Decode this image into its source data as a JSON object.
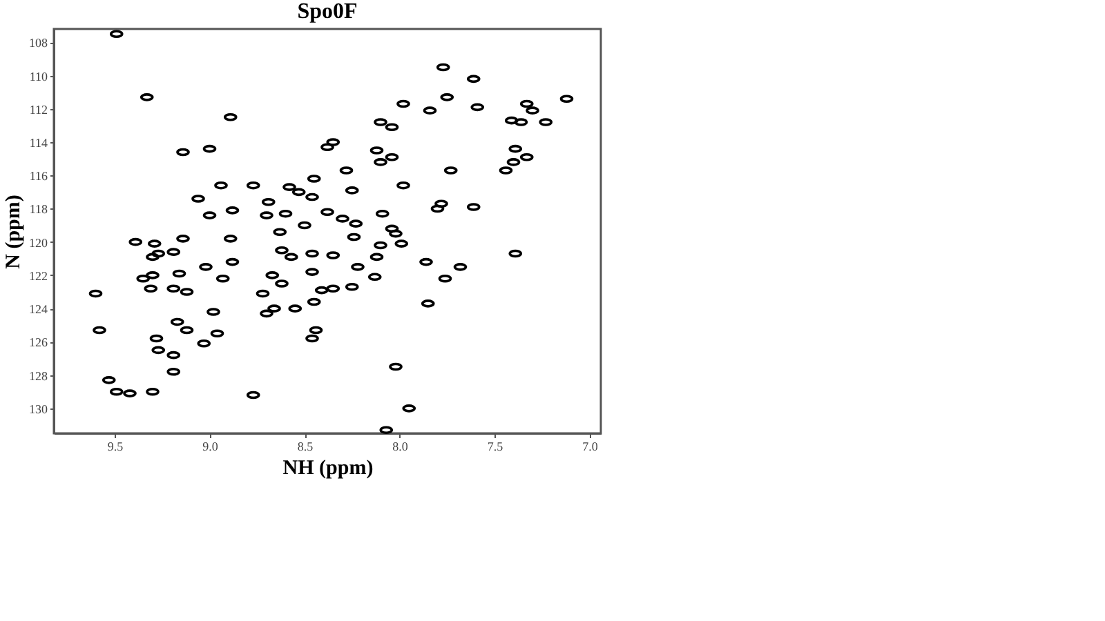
{
  "chart_data": {
    "type": "scatter",
    "title": "Spo0F",
    "xlabel": "NH (ppm)",
    "ylabel": "N (ppm)",
    "xlim": [
      9.82,
      6.94
    ],
    "ylim": [
      131.5,
      107.2
    ],
    "xticks": [
      9.5,
      {
        "value": 9,
        "label": "9.0"
      },
      8.5,
      {
        "value": 8,
        "label": "8.0"
      },
      7.5,
      {
        "value": 7,
        "label": "7.0"
      }
    ],
    "yticks": [
      108,
      110,
      112,
      114,
      116,
      118,
      120,
      122,
      124,
      126,
      128,
      130
    ],
    "grid": false,
    "marker": "circle",
    "x": [
      9.49,
      9.33,
      8.89,
      9.14,
      9.0,
      8.94,
      8.77,
      9.06,
      9.0,
      8.88,
      8.89,
      7.98,
      7.84,
      8.1,
      8.04,
      8.35,
      8.38,
      8.12,
      8.04,
      8.1,
      8.28,
      8.45,
      7.98,
      8.58,
      8.53,
      8.46,
      8.25,
      8.69,
      8.7,
      8.6,
      8.38,
      8.3,
      8.09,
      8.23,
      8.5,
      8.63,
      8.04,
      8.02,
      8.24,
      8.1,
      7.99,
      8.62,
      8.57,
      8.46,
      8.35,
      8.22,
      8.12,
      7.86,
      8.46,
      8.67,
      8.62,
      8.13,
      8.41,
      8.35,
      8.25,
      8.72,
      8.45,
      8.66,
      8.7,
      8.55,
      8.44,
      8.46,
      8.02,
      8.77,
      7.95,
      8.07,
      7.85,
      7.77,
      7.61,
      7.75,
      7.59,
      7.33,
      7.3,
      7.12,
      7.41,
      7.36,
      7.23,
      7.39,
      7.33,
      7.4,
      7.44,
      7.73,
      7.78,
      7.8,
      7.61,
      7.68,
      7.76,
      7.39,
      9.39,
      9.29,
      9.14,
      9.3,
      9.27,
      9.19,
      9.02,
      8.88,
      9.35,
      9.3,
      9.16,
      8.93,
      9.6,
      9.31,
      9.19,
      9.12,
      8.98,
      9.17,
      9.12,
      8.96,
      9.58,
      9.28,
      9.03,
      9.27,
      9.19,
      9.19,
      9.53,
      9.49,
      9.42,
      9.3
    ],
    "series": [
      {
        "color": "#000000",
        "values": [
          107.5,
          111.3,
          112.5,
          114.6,
          114.4,
          116.6,
          116.6,
          117.4,
          118.4,
          118.1,
          119.8,
          111.7,
          112.1,
          112.8,
          113.1,
          114.0,
          114.3,
          114.5,
          114.9,
          115.2,
          115.7,
          116.2,
          116.6,
          116.7,
          117.0,
          117.3,
          116.9,
          117.6,
          118.4,
          118.3,
          118.2,
          118.6,
          118.3,
          118.9,
          119.0,
          119.4,
          119.2,
          119.5,
          119.7,
          120.2,
          120.1,
          120.5,
          120.9,
          120.7,
          120.8,
          121.5,
          120.9,
          121.2,
          121.8,
          122.0,
          122.5,
          122.1,
          122.9,
          122.8,
          122.7,
          123.1,
          123.6,
          124.0,
          124.3,
          124.0,
          125.3,
          125.8,
          127.5,
          129.2,
          130.0,
          131.3,
          123.7,
          109.5,
          110.2,
          111.3,
          111.9,
          111.7,
          112.1,
          111.4,
          112.7,
          112.8,
          112.8,
          114.4,
          114.9,
          115.2,
          115.7,
          115.7,
          117.7,
          118.0,
          117.9,
          121.5,
          122.2,
          120.7,
          120.0,
          120.1,
          119.8,
          120.9,
          120.7,
          120.6,
          121.5,
          121.2,
          122.2,
          122.0,
          121.9,
          122.2,
          123.1,
          122.8,
          122.8,
          123.0,
          124.2,
          124.8,
          125.3,
          125.5,
          125.3,
          125.8,
          126.1,
          126.5,
          126.8,
          127.8,
          128.3,
          129.0,
          129.1,
          129.0
        ]
      }
    ]
  }
}
